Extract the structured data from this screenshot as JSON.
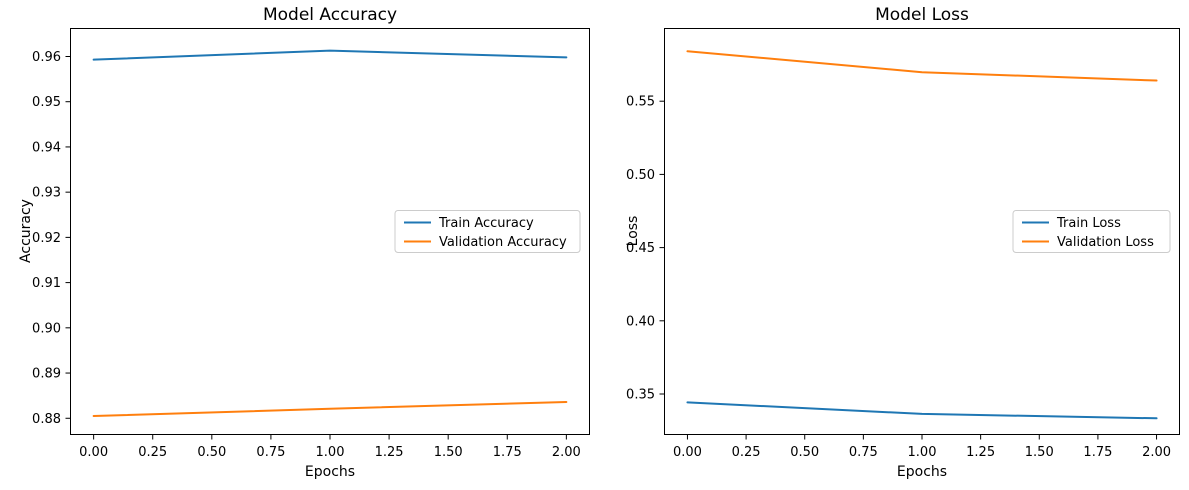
{
  "figure": {
    "background": "#ffffff"
  },
  "colors": {
    "train_line": "#1f77b4",
    "validation_line": "#ff7f0e",
    "axis": "#000000",
    "text": "#000000",
    "legend_border": "#cccccc",
    "legend_fill": "#ffffff"
  },
  "chart_data": [
    {
      "type": "line",
      "title": "Model Accuracy",
      "xlabel": "Epochs",
      "ylabel": "Accuracy",
      "x": [
        0,
        1,
        2
      ],
      "series": [
        {
          "name": "Train Accuracy",
          "color": "#1f77b4",
          "values": [
            0.9593,
            0.9613,
            0.9598
          ]
        },
        {
          "name": "Validation Accuracy",
          "color": "#ff7f0e",
          "values": [
            0.8805,
            0.8821,
            0.8836
          ]
        }
      ],
      "xlim": [
        -0.1,
        2.1
      ],
      "ylim": [
        0.8763,
        0.9663
      ],
      "xticks": [
        0,
        0.25,
        0.5,
        0.75,
        1.0,
        1.25,
        1.5,
        1.75,
        2.0
      ],
      "xtick_labels": [
        "0.00",
        "0.25",
        "0.50",
        "0.75",
        "1.00",
        "1.25",
        "1.50",
        "1.75",
        "2.00"
      ],
      "yticks": [
        0.88,
        0.89,
        0.9,
        0.91,
        0.92,
        0.93,
        0.94,
        0.95,
        0.96
      ],
      "ytick_labels": [
        "0.88",
        "0.89",
        "0.90",
        "0.91",
        "0.92",
        "0.93",
        "0.94",
        "0.95",
        "0.96"
      ],
      "legend": {
        "position": "center right",
        "entries": [
          "Train Accuracy",
          "Validation Accuracy"
        ]
      },
      "grid": false
    },
    {
      "type": "line",
      "title": "Model Loss",
      "xlabel": "Epochs",
      "ylabel": "Loss",
      "x": [
        0,
        1,
        2
      ],
      "series": [
        {
          "name": "Train Loss",
          "color": "#1f77b4",
          "values": [
            0.3443,
            0.3364,
            0.3334
          ]
        },
        {
          "name": "Validation Loss",
          "color": "#ff7f0e",
          "values": [
            0.5841,
            0.5698,
            0.5641
          ]
        }
      ],
      "xlim": [
        -0.1,
        2.1
      ],
      "ylim": [
        0.322,
        0.6
      ],
      "xticks": [
        0,
        0.25,
        0.5,
        0.75,
        1.0,
        1.25,
        1.5,
        1.75,
        2.0
      ],
      "xtick_labels": [
        "0.00",
        "0.25",
        "0.50",
        "0.75",
        "1.00",
        "1.25",
        "1.50",
        "1.75",
        "2.00"
      ],
      "yticks": [
        0.35,
        0.4,
        0.45,
        0.5,
        0.55
      ],
      "ytick_labels": [
        "0.35",
        "0.40",
        "0.45",
        "0.50",
        "0.55"
      ],
      "legend": {
        "position": "center right",
        "entries": [
          "Train Loss",
          "Validation Loss"
        ]
      },
      "grid": false
    }
  ]
}
